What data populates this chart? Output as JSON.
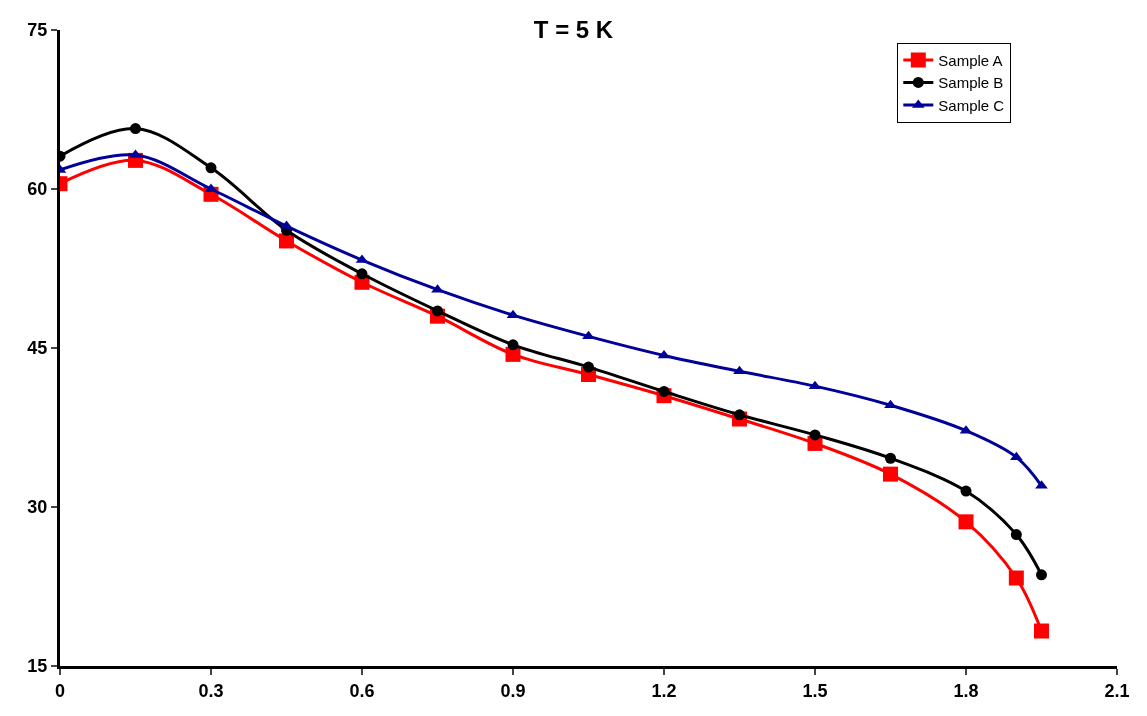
{
  "chart_data": {
    "type": "line",
    "title": "T = 5 K",
    "x": [
      0,
      0.15,
      0.3,
      0.45,
      0.6,
      0.75,
      0.9,
      1.05,
      1.2,
      1.35,
      1.5,
      1.65,
      1.8,
      1.9,
      1.95
    ],
    "series": [
      {
        "name": "Sample A",
        "color": "#ff0000",
        "marker": "square",
        "values": [
          60.5,
          62.7,
          59.5,
          55.1,
          51.2,
          48.0,
          44.4,
          42.5,
          40.5,
          38.3,
          36.0,
          33.1,
          28.6,
          23.3,
          18.3
        ]
      },
      {
        "name": "Sample B",
        "color": "#000000",
        "marker": "circle",
        "values": [
          63.1,
          65.7,
          62.0,
          56.1,
          52.0,
          48.5,
          45.3,
          43.2,
          40.9,
          38.7,
          36.8,
          34.6,
          31.5,
          27.4,
          23.6
        ]
      },
      {
        "name": "Sample C",
        "color": "#000099",
        "marker": "triangle",
        "values": [
          61.8,
          63.2,
          60.0,
          56.5,
          53.3,
          50.5,
          48.1,
          46.1,
          44.3,
          42.8,
          41.4,
          39.6,
          37.2,
          34.7,
          32.0
        ]
      }
    ],
    "xlim": [
      0,
      2.1
    ],
    "xticks": [
      0,
      0.3,
      0.6,
      0.9,
      1.2,
      1.5,
      1.8,
      2.1
    ],
    "ylim": [
      15,
      75
    ],
    "yticks": [
      15,
      30,
      45,
      60,
      75
    ],
    "legend": "top right",
    "line_style": "solid"
  }
}
